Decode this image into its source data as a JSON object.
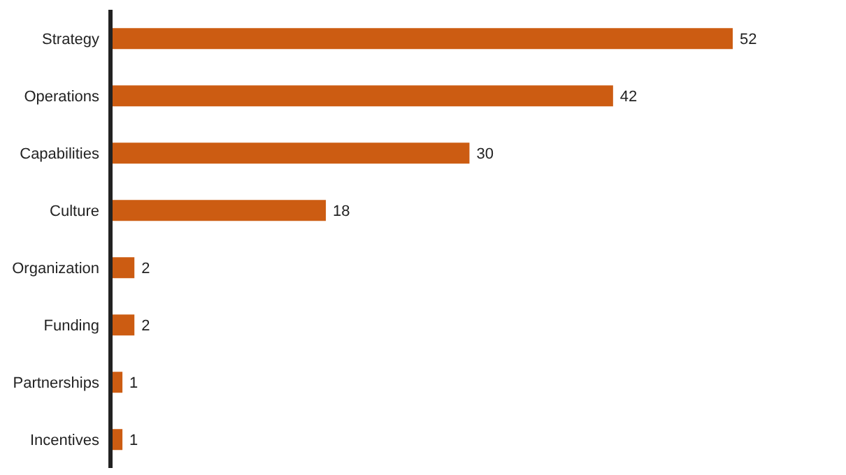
{
  "chart_data": {
    "type": "bar",
    "orientation": "horizontal",
    "categories": [
      "Strategy",
      "Operations",
      "Capabilities",
      "Culture",
      "Organization",
      "Funding",
      "Partnerships",
      "Incentives"
    ],
    "values": [
      52,
      42,
      30,
      18,
      2,
      2,
      1,
      1
    ],
    "color": "#cc5c12",
    "data_labels": true
  }
}
